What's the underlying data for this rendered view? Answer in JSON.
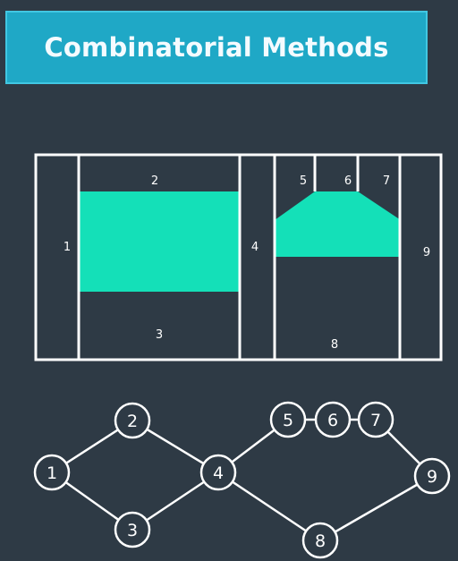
{
  "title": "Combinatorial Methods",
  "colors": {
    "background": "#2e3a45",
    "banner": "#1fa8c6",
    "obstacle": "#14e0b8",
    "line": "#ffffff"
  },
  "decomposition": {
    "cells": [
      "1",
      "2",
      "3",
      "4",
      "5",
      "6",
      "7",
      "8",
      "9"
    ]
  },
  "graph": {
    "nodes": [
      "1",
      "2",
      "3",
      "4",
      "5",
      "6",
      "7",
      "8",
      "9"
    ],
    "edges": [
      [
        "1",
        "2"
      ],
      [
        "1",
        "3"
      ],
      [
        "2",
        "4"
      ],
      [
        "3",
        "4"
      ],
      [
        "4",
        "5"
      ],
      [
        "5",
        "6"
      ],
      [
        "6",
        "7"
      ],
      [
        "7",
        "9"
      ],
      [
        "4",
        "8"
      ],
      [
        "8",
        "9"
      ]
    ]
  }
}
